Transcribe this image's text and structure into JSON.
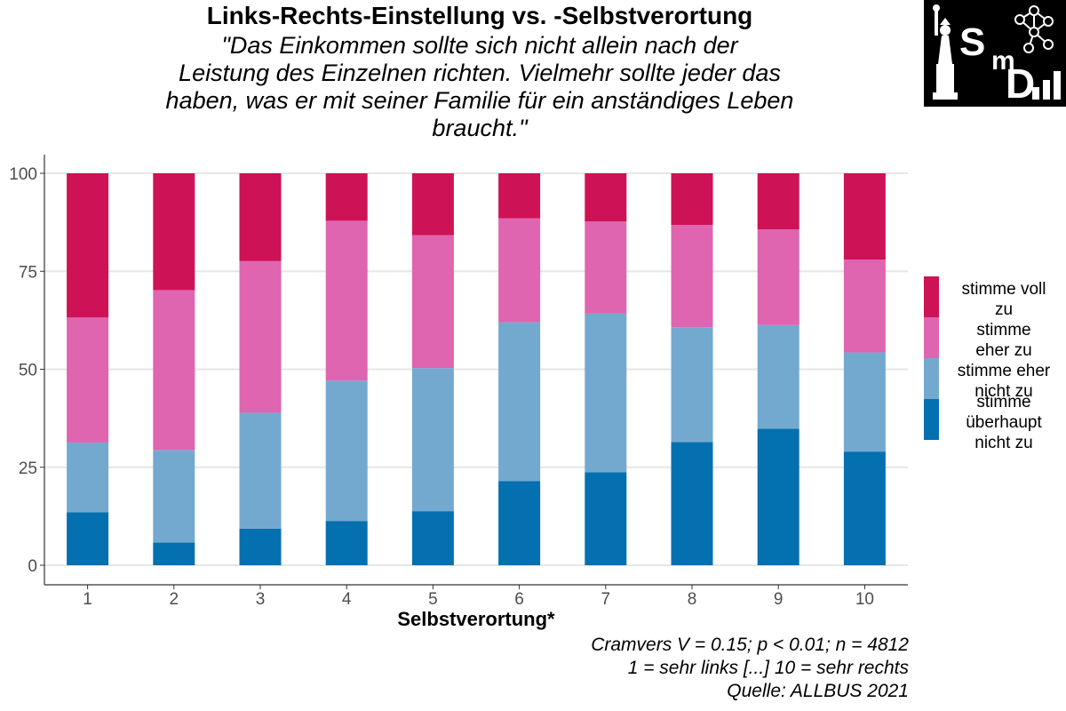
{
  "chart_data": {
    "type": "bar",
    "stacked": true,
    "title": "Links-Rechts-Einstellung vs. -Selbstverortung",
    "subtitle": "\"Das Einkommen sollte sich nicht allein nach der Leistung des Einzelnen richten. Vielmehr sollte jeder das haben, was er mit seiner Familie für ein anständiges Leben braucht.\"",
    "subtitle_lines": [
      "\"Das Einkommen sollte sich nicht allein nach der",
      "Leistung des Einzelnen richten. Vielmehr sollte jeder das",
      "haben, was er mit seiner Familie für ein anständiges Leben",
      "braucht.\""
    ],
    "xlabel": "Selbstverortung*",
    "ylabel": "",
    "ylim": [
      0,
      100
    ],
    "yticks": [
      0,
      25,
      50,
      75,
      100
    ],
    "grid": true,
    "legend_position": "right",
    "categories": [
      "1",
      "2",
      "3",
      "4",
      "5",
      "6",
      "7",
      "8",
      "9",
      "10"
    ],
    "series": [
      {
        "name": "stimme überhaupt nicht zu",
        "label_lines": [
          "stimme",
          "überhaupt",
          "nicht zu"
        ],
        "color": "#0570b0",
        "values": [
          13.5,
          5.8,
          9.3,
          11.3,
          13.8,
          21.5,
          23.7,
          31.4,
          34.8,
          29.0
        ]
      },
      {
        "name": "stimme eher nicht zu",
        "label_lines": [
          "stimme eher",
          "nicht zu"
        ],
        "color": "#74a9cf",
        "values": [
          17.8,
          23.6,
          29.6,
          35.8,
          36.5,
          40.5,
          40.5,
          29.3,
          26.5,
          25.3
        ]
      },
      {
        "name": "stimme eher zu",
        "label_lines": [
          "stimme",
          "eher zu"
        ],
        "color": "#df65b0",
        "values": [
          31.9,
          40.8,
          38.7,
          40.8,
          33.9,
          26.5,
          23.5,
          26.1,
          24.4,
          23.7
        ]
      },
      {
        "name": "stimme voll zu",
        "label_lines": [
          "stimme voll",
          "zu"
        ],
        "color": "#ce1256",
        "values": [
          36.8,
          29.8,
          22.4,
          12.1,
          15.8,
          11.5,
          12.3,
          13.2,
          14.3,
          22.0
        ]
      }
    ],
    "captions": [
      "Cramvers V = 0.15; p < 0.01; n = 4812",
      "1 = sehr links [...] 10 = sehr rechts",
      "Quelle: ALLBUS 2021"
    ]
  },
  "logo": {
    "text_s": "S",
    "text_m": "m",
    "text_d": "D"
  }
}
